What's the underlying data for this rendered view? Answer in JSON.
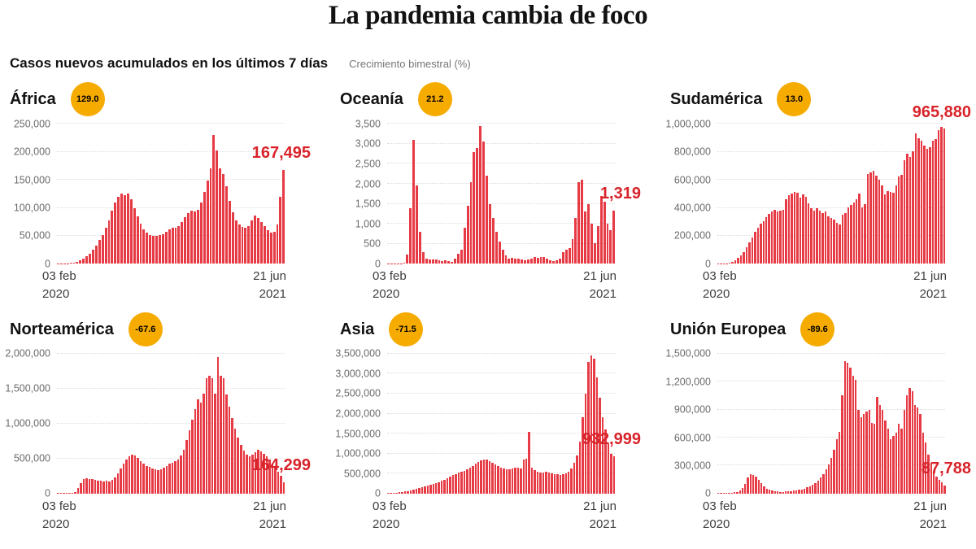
{
  "page": {
    "title": "La pandemia cambia de foco",
    "subtitle": "Casos nuevos acumulados en los últimos 7 días",
    "badge_note": "Crecimiento bimestral (%)"
  },
  "colors": {
    "bar": "#e63a44",
    "value_label": "#d8232a",
    "badge_bg": "#f6ab00",
    "badge_text": "#000000",
    "grid_line": "#dcdcdc",
    "y_tick_text": "#6b6b6b",
    "x_tick_text": "#3c3c3c",
    "title_text": "#121212",
    "note_text": "#767676",
    "background": "#ffffff"
  },
  "chart_data": [
    {
      "type": "bar",
      "region": "África",
      "growth_badge": "129.0",
      "final_label": "167,495",
      "final_value": 167495,
      "y_max": 250000,
      "yticks": [
        "0",
        "50,000",
        "100,000",
        "150,000",
        "200,000",
        "250,000"
      ],
      "x_start": [
        "03 feb",
        "2020"
      ],
      "x_end": [
        "21 jun",
        "2021"
      ],
      "x_range": [
        "03 feb 2020",
        "21 jun 2021"
      ],
      "values": [
        100,
        200,
        400,
        700,
        1200,
        2000,
        3500,
        6000,
        9000,
        13000,
        18000,
        25000,
        33000,
        42000,
        52000,
        64000,
        78000,
        95000,
        110000,
        120000,
        125000,
        122000,
        126000,
        115000,
        100000,
        85000,
        72000,
        62000,
        56000,
        52000,
        50000,
        50000,
        51000,
        53000,
        57000,
        61000,
        65000,
        65000,
        68000,
        74000,
        84000,
        91000,
        95000,
        93000,
        96000,
        110000,
        128000,
        148000,
        170000,
        230000,
        202000,
        170000,
        161000,
        138000,
        112000,
        92000,
        78000,
        70000,
        66000,
        65000,
        68000,
        78000,
        86000,
        82000,
        75000,
        68000,
        60000,
        55000,
        57000,
        70000,
        120000,
        167495
      ]
    },
    {
      "type": "bar",
      "region": "Oceanía",
      "growth_badge": "21.2",
      "final_label": "1,319",
      "final_value": 1319,
      "y_max": 3500,
      "yticks": [
        "0",
        "500",
        "1,000",
        "1,500",
        "2,000",
        "2,500",
        "3,000",
        "3,500"
      ],
      "x_start": [
        "03 feb",
        "2020"
      ],
      "x_end": [
        "21 jun",
        "2021"
      ],
      "x_range": [
        "03 feb 2020",
        "21 jun 2021"
      ],
      "values": [
        5,
        5,
        8,
        10,
        15,
        30,
        240,
        1400,
        3100,
        1950,
        800,
        300,
        120,
        100,
        110,
        100,
        80,
        60,
        90,
        70,
        50,
        120,
        260,
        350,
        900,
        1450,
        2050,
        2800,
        2900,
        3450,
        3050,
        2200,
        1500,
        1150,
        800,
        550,
        350,
        200,
        130,
        150,
        120,
        130,
        100,
        90,
        110,
        120,
        170,
        150,
        160,
        170,
        130,
        80,
        60,
        90,
        130,
        300,
        350,
        400,
        620,
        1150,
        2050,
        2100,
        1300,
        1500,
        1000,
        520,
        950,
        1700,
        1550,
        1000,
        850,
        1319
      ]
    },
    {
      "type": "bar",
      "region": "Sudamérica",
      "growth_badge": "13.0",
      "final_label": "965,880",
      "final_value": 965880,
      "y_max": 1000000,
      "yticks": [
        "0",
        "200,000",
        "400,000",
        "600,000",
        "800,000",
        "1,000,000"
      ],
      "x_start": [
        "03 feb",
        "2020"
      ],
      "x_end": [
        "21 jun",
        "2021"
      ],
      "x_range": [
        "03 feb 2020",
        "21 jun 2021"
      ],
      "values": [
        500,
        1000,
        2000,
        4000,
        8000,
        15000,
        25000,
        40000,
        60000,
        85000,
        120000,
        155000,
        190000,
        228000,
        258000,
        285000,
        305000,
        332000,
        356000,
        372000,
        386000,
        372000,
        382000,
        388000,
        462000,
        492000,
        502000,
        512000,
        505000,
        472000,
        498000,
        478000,
        430000,
        395000,
        380000,
        395000,
        380000,
        362000,
        372000,
        340000,
        328000,
        315000,
        290000,
        282000,
        350000,
        365000,
        402000,
        422000,
        435000,
        462000,
        500000,
        405000,
        428000,
        642000,
        655000,
        665000,
        632000,
        600000,
        560000,
        495000,
        522000,
        512000,
        505000,
        562000,
        622000,
        635000,
        742000,
        785000,
        762000,
        805000,
        930000,
        900000,
        878000,
        842000,
        822000,
        832000,
        878000,
        892000,
        958000,
        978000,
        965880
      ]
    },
    {
      "type": "bar",
      "region": "Norteamérica",
      "growth_badge": "-67.6",
      "final_label": "164,299",
      "final_value": 164299,
      "y_max": 2000000,
      "yticks": [
        "0",
        "500,000",
        "1,000,000",
        "1,500,000",
        "2,000,000"
      ],
      "x_start": [
        "03 feb",
        "2020"
      ],
      "x_end": [
        "21 jun",
        "2021"
      ],
      "x_range": [
        "03 feb 2020",
        "21 jun 2021"
      ],
      "values": [
        1000,
        2000,
        3000,
        5000,
        8000,
        15000,
        25000,
        80000,
        150000,
        210000,
        215000,
        210000,
        208000,
        195000,
        185000,
        180000,
        178000,
        182000,
        178000,
        200000,
        235000,
        290000,
        360000,
        430000,
        490000,
        530000,
        555000,
        540000,
        515000,
        465000,
        425000,
        398000,
        378000,
        358000,
        342000,
        332000,
        342000,
        365000,
        395000,
        432000,
        445000,
        465000,
        490000,
        540000,
        630000,
        760000,
        910000,
        1060000,
        1210000,
        1350000,
        1300000,
        1430000,
        1650000,
        1680000,
        1650000,
        1430000,
        1950000,
        1680000,
        1650000,
        1420000,
        1240000,
        1080000,
        930000,
        800000,
        690000,
        610000,
        555000,
        535000,
        560000,
        590000,
        620000,
        600000,
        570000,
        530000,
        490000,
        430000,
        370000,
        310000,
        255000,
        164299
      ]
    },
    {
      "type": "bar",
      "region": "Asia",
      "growth_badge": "-71.5",
      "final_label": "932,999",
      "final_value": 932999,
      "y_max": 3500000,
      "yticks": [
        "0",
        "500,000",
        "1,000,000",
        "1,500,000",
        "2,000,000",
        "2,500,000",
        "3,000,000",
        "3,500,000"
      ],
      "x_start": [
        "03 feb",
        "2020"
      ],
      "x_end": [
        "21 jun",
        "2021"
      ],
      "x_range": [
        "03 feb 2020",
        "21 jun 2021"
      ],
      "values": [
        10000,
        15000,
        20000,
        25000,
        30000,
        40000,
        50000,
        60000,
        75000,
        90000,
        110000,
        130000,
        150000,
        170000,
        190000,
        215000,
        240000,
        265000,
        290000,
        320000,
        350000,
        385000,
        420000,
        455000,
        490000,
        520000,
        545000,
        570000,
        600000,
        640000,
        690000,
        740000,
        790000,
        830000,
        860000,
        845000,
        800000,
        760000,
        720000,
        680000,
        650000,
        630000,
        615000,
        600000,
        625000,
        650000,
        640000,
        630000,
        860000,
        880000,
        1550000,
        640000,
        580000,
        545000,
        530000,
        520000,
        540000,
        520000,
        505000,
        490000,
        475000,
        465000,
        480000,
        500000,
        540000,
        620000,
        760000,
        950000,
        1300000,
        1900000,
        2500000,
        3300000,
        3450000,
        3380000,
        2900000,
        2400000,
        1900000,
        1600000,
        1250000,
        1000000,
        932999
      ]
    },
    {
      "type": "bar",
      "region": "Unión Europea",
      "growth_badge": "-89.6",
      "final_label": "87,788",
      "final_value": 87788,
      "y_max": 1500000,
      "yticks": [
        "0",
        "300,000",
        "600,000",
        "900,000",
        "1,200,000",
        "1,500,000"
      ],
      "x_start": [
        "03 feb",
        "2020"
      ],
      "x_end": [
        "21 jun",
        "2021"
      ],
      "x_range": [
        "03 feb 2020",
        "21 jun 2021"
      ],
      "values": [
        1000,
        1000,
        2000,
        3000,
        5000,
        8000,
        12000,
        20000,
        35000,
        60000,
        105000,
        170000,
        205000,
        195000,
        185000,
        150000,
        110000,
        75000,
        50000,
        38000,
        30000,
        25000,
        22000,
        20000,
        20000,
        22000,
        25000,
        28000,
        30000,
        33000,
        38000,
        45000,
        55000,
        65000,
        80000,
        95000,
        115000,
        140000,
        170000,
        210000,
        260000,
        310000,
        380000,
        470000,
        580000,
        660000,
        1050000,
        1420000,
        1400000,
        1350000,
        1260000,
        1220000,
        900000,
        820000,
        850000,
        880000,
        900000,
        760000,
        745000,
        1040000,
        950000,
        900000,
        780000,
        700000,
        580000,
        620000,
        650000,
        750000,
        700000,
        900000,
        1050000,
        1130000,
        1100000,
        950000,
        920000,
        850000,
        650000,
        550000,
        420000,
        330000,
        230000,
        180000,
        150000,
        120000,
        87788
      ]
    }
  ]
}
